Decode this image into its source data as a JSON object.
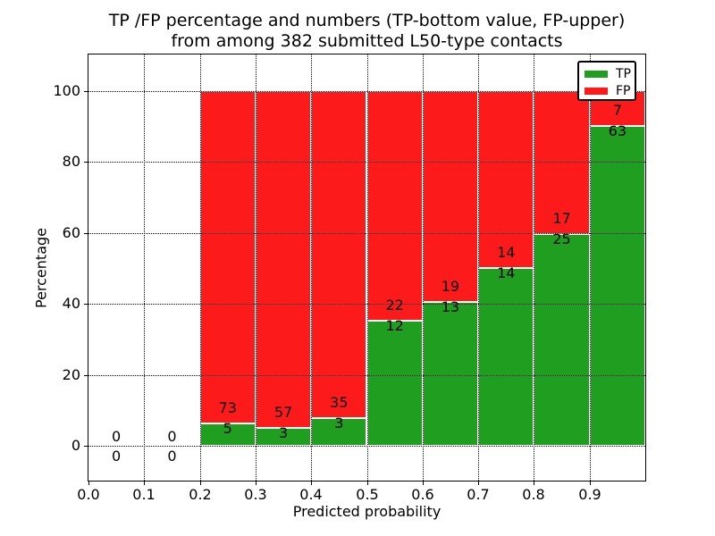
{
  "chart_data": {
    "type": "bar",
    "stacking": "percentage",
    "title_line1": "TP /FP percentage and numbers (TP-bottom value, FP-upper)",
    "title_line2": "from among 382 submitted L50-type contacts",
    "total_submitted": 382,
    "xlabel": "Predicted probability",
    "ylabel": "Percentage",
    "xlim": [
      0.0,
      1.0
    ],
    "ylim": [
      -10,
      110
    ],
    "grid": true,
    "xtick_values": [
      0.0,
      0.1,
      0.2,
      0.3,
      0.4,
      0.5,
      0.6,
      0.7,
      0.8,
      0.9
    ],
    "xtick_labels": [
      "0.0",
      "0.1",
      "0.2",
      "0.3",
      "0.4",
      "0.5",
      "0.6",
      "0.7",
      "0.8",
      "0.9"
    ],
    "ytick_values": [
      0,
      20,
      40,
      60,
      80,
      100
    ],
    "ytick_labels": [
      "0",
      "20",
      "40",
      "60",
      "80",
      "100"
    ],
    "colors": {
      "tp": "#1f9e1f",
      "fp": "#fd1a1a"
    },
    "legend": {
      "position": "upper right",
      "entries": [
        {
          "label": "TP",
          "color": "#1f9e1f"
        },
        {
          "label": "FP",
          "color": "#fd1a1a"
        }
      ]
    },
    "bins": [
      {
        "x0": 0.0,
        "x1": 0.1,
        "tp": 0,
        "fp": 0
      },
      {
        "x0": 0.1,
        "x1": 0.2,
        "tp": 0,
        "fp": 0
      },
      {
        "x0": 0.2,
        "x1": 0.3,
        "tp": 5,
        "fp": 73
      },
      {
        "x0": 0.3,
        "x1": 0.4,
        "tp": 3,
        "fp": 57
      },
      {
        "x0": 0.4,
        "x1": 0.5,
        "tp": 3,
        "fp": 35
      },
      {
        "x0": 0.5,
        "x1": 0.6,
        "tp": 12,
        "fp": 22
      },
      {
        "x0": 0.6,
        "x1": 0.7,
        "tp": 13,
        "fp": 19
      },
      {
        "x0": 0.7,
        "x1": 0.8,
        "tp": 14,
        "fp": 14
      },
      {
        "x0": 0.8,
        "x1": 0.9,
        "tp": 25,
        "fp": 17
      },
      {
        "x0": 0.9,
        "x1": 1.0,
        "tp": 63,
        "fp": 7
      }
    ]
  }
}
